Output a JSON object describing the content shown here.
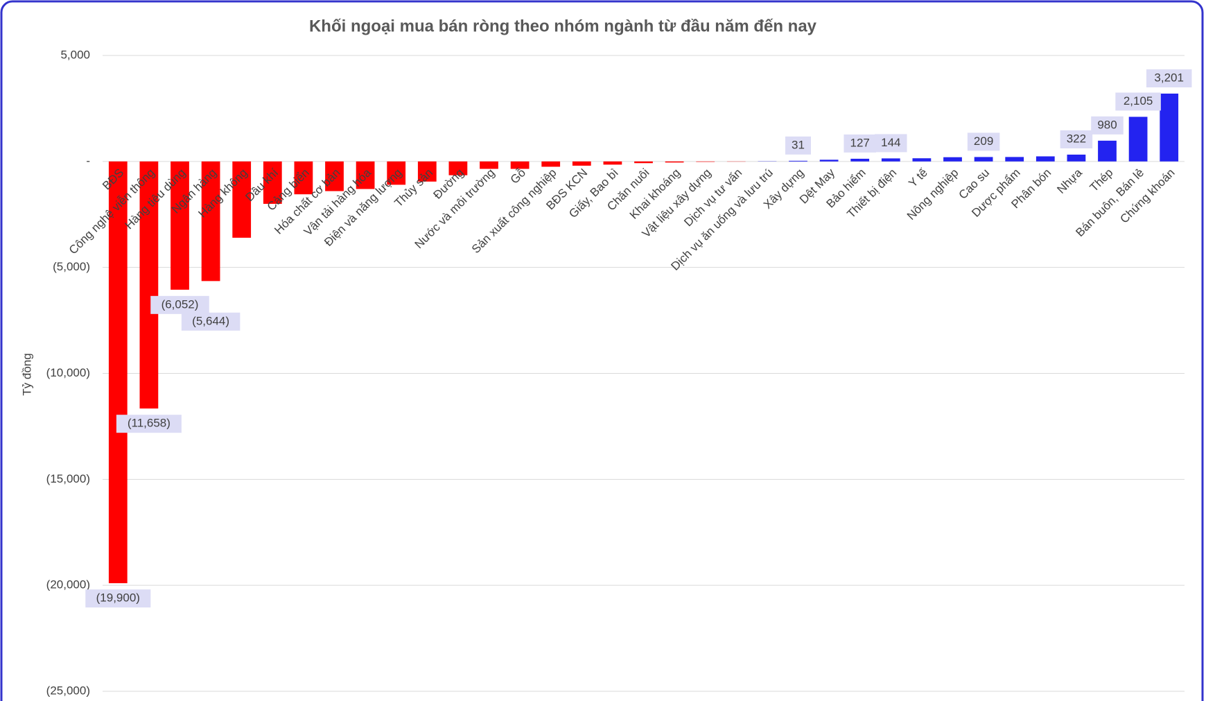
{
  "chart_data": {
    "type": "bar",
    "title": "Khối ngoại mua bán ròng theo nhóm ngành từ đầu năm đến nay",
    "y_label": "Tỷ đồng",
    "categories": [
      "BĐS",
      "Công nghệ viễn thông",
      "Hàng tiêu dùng",
      "Ngân hàng",
      "Hàng không",
      "Dầu khí",
      "Cảng biển",
      "Hóa chất cơ bản",
      "Vận tải hàng hóa",
      "Điện và năng lượng",
      "Thủy sản",
      "Đường",
      "Nước và môi trường",
      "Gỗ",
      "Sản xuất công nghiệp",
      "BĐS KCN",
      "Giấy, Bao bì",
      "Chăn nuôi",
      "Khai khoáng",
      "Vật liệu xây dựng",
      "Dịch vụ tư vấn",
      "Dịch vụ ăn uống và lưu trú",
      "Xây dựng",
      "Dệt May",
      "Bảo hiểm",
      "Thiết bị điện",
      "Y tế",
      "Nông nghiệp",
      "Cao su",
      "Dược phẩm",
      "Phân bón",
      "Nhựa",
      "Thép",
      "Bán buôn, Bán lẻ",
      "Chứng khoán"
    ],
    "values": [
      -19900,
      -11658,
      -6052,
      -5644,
      -3600,
      -2000,
      -1550,
      -1400,
      -1300,
      -1100,
      -950,
      -650,
      -350,
      -350,
      -250,
      -200,
      -150,
      -80,
      -50,
      -20,
      -10,
      10,
      31,
      80,
      127,
      144,
      150,
      200,
      209,
      210,
      240,
      322,
      980,
      2105,
      3201
    ],
    "value_labels": [
      "(19,900)",
      "(11,658)",
      "(6,052)",
      "(5,644)",
      null,
      null,
      null,
      null,
      null,
      null,
      null,
      null,
      null,
      null,
      null,
      null,
      null,
      null,
      null,
      null,
      null,
      null,
      "31",
      null,
      "127",
      "144",
      null,
      null,
      "209",
      null,
      null,
      "322",
      "980",
      "2,105",
      "3,201"
    ],
    "color_negative": "#ff0000",
    "color_positive": "#2323f0",
    "ylim": [
      -25000,
      5000
    ],
    "yticks": [
      {
        "value": -25000,
        "label": "(25,000)"
      },
      {
        "value": -20000,
        "label": "(20,000)"
      },
      {
        "value": -15000,
        "label": "(15,000)"
      },
      {
        "value": -10000,
        "label": "(10,000)"
      },
      {
        "value": -5000,
        "label": "(5,000)"
      },
      {
        "value": 0,
        "label": "-"
      },
      {
        "value": 5000,
        "label": "5,000"
      }
    ],
    "grid": true
  }
}
